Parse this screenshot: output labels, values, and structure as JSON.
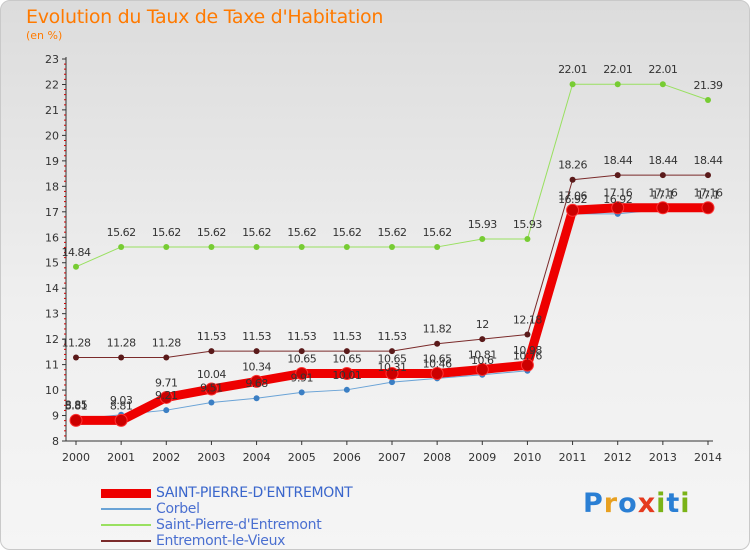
{
  "title": "Evolution du Taux de Taxe d'Habitation",
  "subtitle": "(en %)",
  "logo": {
    "text": "Proxiti",
    "letters": [
      "P",
      "r",
      "o",
      "x",
      "i",
      "t",
      "i"
    ],
    "letter_colors": [
      "#2a7fd4",
      "#e8a020",
      "#2a7fd4",
      "#e53a1e",
      "#7ab317",
      "#2a7fd4",
      "#7ab317"
    ]
  },
  "chart_data": {
    "type": "line",
    "x": [
      "2000",
      "2001",
      "2002",
      "2003",
      "2004",
      "2005",
      "2006",
      "2007",
      "2008",
      "2009",
      "2010",
      "2011",
      "2012",
      "2013",
      "2014"
    ],
    "ylim": [
      8,
      23
    ],
    "yticks": [
      8,
      9,
      10,
      11,
      12,
      13,
      14,
      15,
      16,
      17,
      18,
      19,
      20,
      21,
      22,
      23
    ],
    "grid": false,
    "legend_position": "bottom-left",
    "series": [
      {
        "name": "SAINT-PIERRE-D'ENTREMONT",
        "color": "#ee0000",
        "width": 9,
        "marker": "#cc0000",
        "marker_radius": 6,
        "values": [
          8.81,
          8.81,
          9.71,
          10.04,
          10.34,
          10.65,
          10.65,
          10.65,
          10.65,
          10.81,
          10.98,
          17.06,
          17.16,
          17.16,
          17.16
        ],
        "labels": [
          "8.81",
          "8.81",
          "9.71",
          "10.04",
          "10.34",
          "10.65",
          "10.65",
          "10.65",
          "10.65",
          "10.81",
          "10.98",
          "17.06",
          "17.16",
          "17.16",
          "17.16"
        ]
      },
      {
        "name": "Corbel",
        "color": "#6aa3d6",
        "width": 1,
        "marker": "#3b7fc4",
        "marker_radius": 3,
        "values": [
          8.85,
          9.03,
          9.21,
          9.51,
          9.68,
          9.91,
          10.01,
          10.31,
          10.46,
          10.6,
          10.76,
          16.92,
          16.92,
          17.1,
          17.1
        ],
        "labels": [
          "8.85",
          "9.03",
          "9.21",
          "9.51",
          "9.68",
          "9.91",
          "10.01",
          "10.31",
          "10.46",
          "10.6",
          "10.76",
          "16.92",
          "16.92",
          "17.1",
          "17.1"
        ]
      },
      {
        "name": "Saint-Pierre-d'Entremont",
        "color": "#99e060",
        "width": 1,
        "marker": "#77cc33",
        "marker_radius": 3,
        "values": [
          14.84,
          15.62,
          15.62,
          15.62,
          15.62,
          15.62,
          15.62,
          15.62,
          15.62,
          15.93,
          15.93,
          22.01,
          22.01,
          22.01,
          21.39
        ],
        "labels": [
          "14.84",
          "15.62",
          "15.62",
          "15.62",
          "15.62",
          "15.62",
          "15.62",
          "15.62",
          "15.62",
          "15.93",
          "15.93",
          "22.01",
          "22.01",
          "22.01",
          "21.39"
        ]
      },
      {
        "name": "Entremont-le-Vieux",
        "color": "#7a2a2a",
        "width": 1,
        "marker": "#5a1a1a",
        "marker_radius": 3,
        "values": [
          11.28,
          11.28,
          11.28,
          11.53,
          11.53,
          11.53,
          11.53,
          11.53,
          11.82,
          12.0,
          12.18,
          18.26,
          18.44,
          18.44,
          18.44
        ],
        "labels": [
          "11.28",
          "11.28",
          "11.28",
          "11.53",
          "11.53",
          "11.53",
          "11.53",
          "11.53",
          "11.82",
          "12",
          "12.18",
          "18.26",
          "18.44",
          "18.44",
          "18.44"
        ]
      }
    ]
  }
}
